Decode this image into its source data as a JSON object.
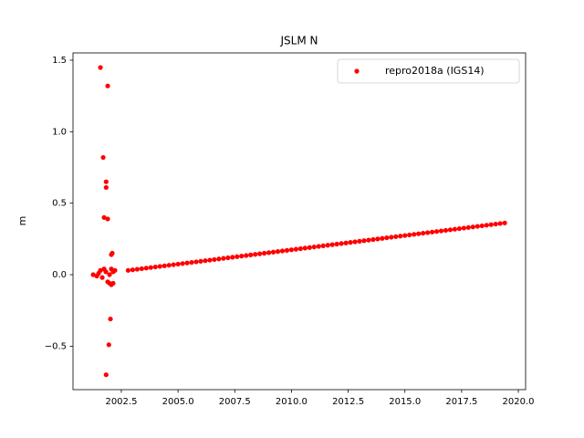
{
  "chart_data": {
    "type": "scatter",
    "title": "JSLM N",
    "ylabel": "m",
    "xlim": [
      2000.37,
      2020.32
    ],
    "ylim": [
      -0.804,
      1.551
    ],
    "xticks": [
      2002.5,
      {
        "value": 2005.0,
        "label": "2005.0"
      },
      2007.5,
      {
        "value": 2010.0,
        "label": "2010.0"
      },
      2012.5,
      {
        "value": 2015.0,
        "label": "2015.0"
      },
      2017.5,
      {
        "value": 2020.0,
        "label": "2020.0"
      }
    ],
    "yticks": [
      {
        "value": -0.5,
        "label": "−0.5"
      },
      {
        "value": 0.0,
        "label": "0.0"
      },
      0.5,
      {
        "value": 1.0,
        "label": "1.0"
      },
      1.5
    ],
    "legend": "upper right",
    "series": [
      {
        "name": "repro2018a (IGS14)",
        "color": "#ff0000",
        "x": [
          2001.58,
          2001.9,
          2001.7,
          2001.83,
          2001.83,
          2001.74,
          2001.9,
          2002.06,
          2002.1,
          2002.02,
          2001.95,
          2001.83,
          2001.26,
          2001.42,
          2001.5,
          2001.58,
          2001.66,
          2001.74,
          2001.82,
          2001.98,
          2002.06,
          2002.14,
          2002.22,
          2001.9,
          2001.98,
          2002.06,
          2002.14,
          2002.8,
          2003,
          2003.2,
          2003.4,
          2003.6,
          2003.8,
          2004,
          2004.2,
          2004.4,
          2004.6,
          2004.8,
          2005,
          2005.2,
          2005.4,
          2005.6,
          2005.8,
          2006,
          2006.2,
          2006.4,
          2006.6,
          2006.8,
          2007,
          2007.2,
          2007.4,
          2007.6,
          2007.8,
          2008,
          2008.2,
          2008.4,
          2008.6,
          2008.8,
          2009,
          2009.2,
          2009.4,
          2009.6,
          2009.8,
          2010,
          2010.2,
          2010.4,
          2010.6,
          2010.8,
          2011,
          2011.2,
          2011.4,
          2011.6,
          2011.8,
          2012,
          2012.2,
          2012.4,
          2012.6,
          2012.8,
          2013,
          2013.2,
          2013.4,
          2013.6,
          2013.8,
          2014,
          2014.2,
          2014.4,
          2014.6,
          2014.8,
          2015,
          2015.2,
          2015.4,
          2015.6,
          2015.8,
          2016,
          2016.2,
          2016.4,
          2016.6,
          2016.8,
          2017,
          2017.2,
          2017.4,
          2017.6,
          2017.8,
          2018,
          2018.2,
          2018.4,
          2018.6,
          2018.8,
          2019,
          2019.2,
          2019.4
        ],
        "values": [
          1.449,
          1.32,
          0.82,
          0.65,
          0.61,
          0.4,
          0.39,
          0.14,
          0.15,
          -0.31,
          -0.49,
          -0.7,
          0.0,
          -0.01,
          0.01,
          0.03,
          -0.02,
          0.04,
          0.02,
          0.0,
          0.04,
          0.02,
          0.03,
          -0.05,
          -0.06,
          -0.07,
          -0.06,
          0.03,
          0.034,
          0.038,
          0.042,
          0.046,
          0.05,
          0.054,
          0.058,
          0.062,
          0.066,
          0.07,
          0.074,
          0.078,
          0.082,
          0.086,
          0.09,
          0.094,
          0.098,
          0.102,
          0.106,
          0.11,
          0.114,
          0.118,
          0.122,
          0.126,
          0.13,
          0.134,
          0.138,
          0.142,
          0.146,
          0.15,
          0.154,
          0.158,
          0.162,
          0.166,
          0.17,
          0.174,
          0.178,
          0.182,
          0.186,
          0.19,
          0.194,
          0.198,
          0.202,
          0.206,
          0.21,
          0.214,
          0.218,
          0.222,
          0.226,
          0.23,
          0.234,
          0.238,
          0.242,
          0.246,
          0.25,
          0.254,
          0.258,
          0.262,
          0.266,
          0.27,
          0.274,
          0.278,
          0.282,
          0.286,
          0.29,
          0.294,
          0.298,
          0.302,
          0.306,
          0.31,
          0.314,
          0.318,
          0.322,
          0.326,
          0.33,
          0.334,
          0.338,
          0.342,
          0.346,
          0.35,
          0.354,
          0.358,
          0.362
        ]
      }
    ]
  }
}
